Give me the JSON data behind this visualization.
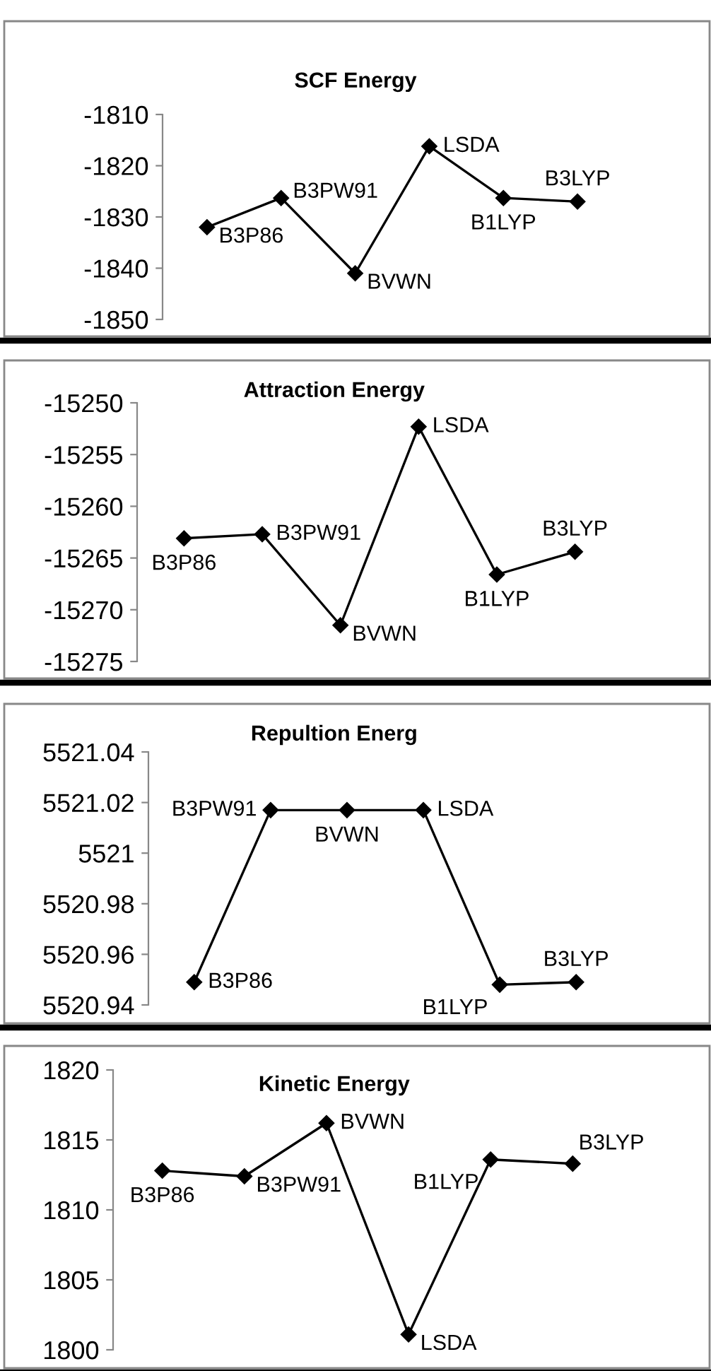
{
  "chart_data": [
    {
      "type": "line",
      "title": "SCF Energy",
      "categories": [
        null,
        null,
        null,
        null,
        null,
        null
      ],
      "values": [
        -1832,
        -1826.3,
        -1841,
        -1816.2,
        -1826.3,
        -1827
      ],
      "color": "#000000",
      "marker": "diamond",
      "ylim": [
        -1850,
        -1810
      ],
      "yticks": [
        -1850,
        -1840,
        -1830,
        -1820,
        -1810
      ],
      "grid": false,
      "tick_labels": "y",
      "annotations": [
        "B3P86",
        "B3PW91",
        "BVWN",
        "LSDA",
        "B1LYP",
        "B3LYP"
      ]
    },
    {
      "type": "line",
      "title": "Attraction Energy",
      "categories": [
        null,
        null,
        null,
        null,
        null,
        null
      ],
      "values": [
        -15263.1,
        -15262.7,
        -15271.5,
        -15252.3,
        -15266.6,
        -15264.4
      ],
      "color": "#000000",
      "marker": "diamond",
      "ylim": [
        -15275,
        -15250
      ],
      "yticks": [
        -15275,
        -15270,
        -15265,
        -15260,
        -15255,
        -15250
      ],
      "grid": false,
      "tick_labels": "y",
      "annotations": [
        "B3P86",
        "B3PW91",
        "BVWN",
        "LSDA",
        "B1LYP",
        "B3LYP"
      ]
    },
    {
      "type": "line",
      "title": "Repultion Energ",
      "categories": [
        null,
        null,
        null,
        null,
        null,
        null
      ],
      "values": [
        5520.949,
        5521.017,
        5521.017,
        5521.017,
        5520.948,
        5520.949
      ],
      "color": "#000000",
      "marker": "diamond",
      "ylim": [
        5520.94,
        5521.04
      ],
      "yticks": [
        5520.94,
        5520.96,
        5520.98,
        5521,
        5521.02,
        5521.04
      ],
      "grid": false,
      "tick_labels": "y",
      "annotations": [
        "B3P86",
        "B3PW91",
        "BVWN",
        "LSDA",
        "B1LYP",
        "B3LYP"
      ]
    },
    {
      "type": "line",
      "title": "Kinetic Energy",
      "categories": [
        null,
        null,
        null,
        null,
        null,
        null
      ],
      "values": [
        1812.8,
        1812.4,
        1816.2,
        1801.1,
        1813.6,
        1813.3
      ],
      "color": "#000000",
      "marker": "diamond",
      "ylim": [
        1800,
        1820
      ],
      "yticks": [
        1800,
        1805,
        1810,
        1815,
        1820
      ],
      "grid": false,
      "tick_labels": "y",
      "annotations": [
        "B3P86",
        "B3PW91",
        "BVWN",
        "LSDA",
        "B1LYP",
        "B3LYP"
      ]
    }
  ]
}
